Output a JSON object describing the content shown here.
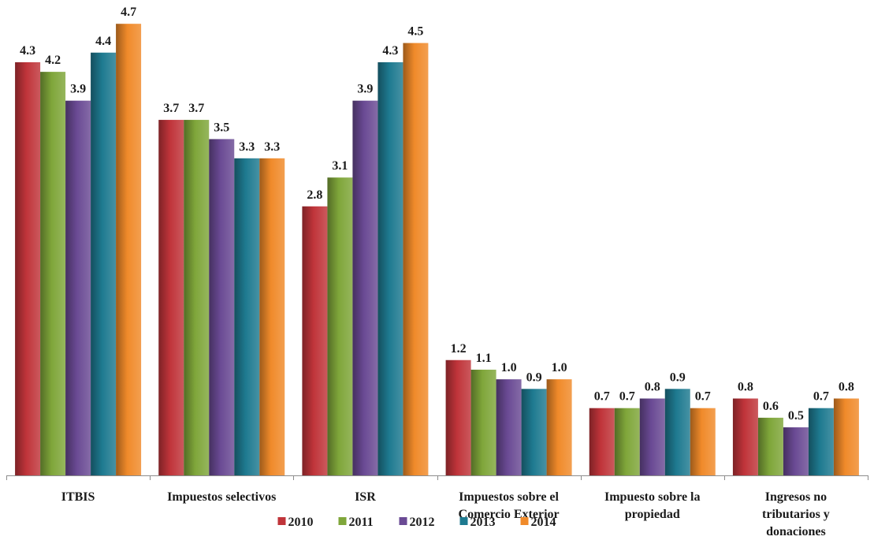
{
  "chart_data": {
    "type": "bar",
    "title": "",
    "xlabel": "",
    "ylabel": "",
    "ylim": [
      0,
      4.8
    ],
    "grid": false,
    "legend_position": "bottom",
    "categories": [
      "ITBIS",
      "Impuestos selectivos",
      "ISR",
      "Impuestos sobre el Comercio Exterior",
      "Impuesto sobre la propiedad",
      "Ingresos no tributarios y donaciones"
    ],
    "category_lines": [
      [
        "ITBIS"
      ],
      [
        "Impuestos selectivos"
      ],
      [
        "ISR"
      ],
      [
        "Impuestos sobre el",
        "Comercio Exterior"
      ],
      [
        "Impuesto sobre la",
        "propiedad"
      ],
      [
        "Ingresos no",
        "tributarios y",
        "donaciones"
      ]
    ],
    "series": [
      {
        "name": "2010",
        "color": "#c0343a",
        "values": [
          4.3,
          3.7,
          2.8,
          1.2,
          0.7,
          0.8
        ]
      },
      {
        "name": "2011",
        "color": "#7fa63a",
        "values": [
          4.2,
          3.7,
          3.1,
          1.1,
          0.7,
          0.6
        ]
      },
      {
        "name": "2012",
        "color": "#6a4a94",
        "values": [
          3.9,
          3.5,
          3.9,
          1.0,
          0.8,
          0.5
        ]
      },
      {
        "name": "2013",
        "color": "#1e7a90",
        "values": [
          4.4,
          3.3,
          4.3,
          0.9,
          0.9,
          0.7
        ]
      },
      {
        "name": "2014",
        "color": "#f08a2a",
        "values": [
          4.7,
          3.3,
          4.5,
          1.0,
          0.7,
          0.8
        ]
      }
    ],
    "value_labels": [
      [
        "4.3",
        "3.7",
        "2.8",
        "1.2",
        "0.7",
        "0.8"
      ],
      [
        "4.2",
        "3.7",
        "3.1",
        "1.1",
        "0.7",
        "0.6"
      ],
      [
        "3.9",
        "3.5",
        "3.9",
        "1.0",
        "0.8",
        "0.5"
      ],
      [
        "4.4",
        "3.3",
        "4.3",
        "0.9",
        "0.9",
        "0.7"
      ],
      [
        "4.7",
        "3.3",
        "4.5",
        "1.0",
        "0.7",
        "0.8"
      ]
    ]
  }
}
